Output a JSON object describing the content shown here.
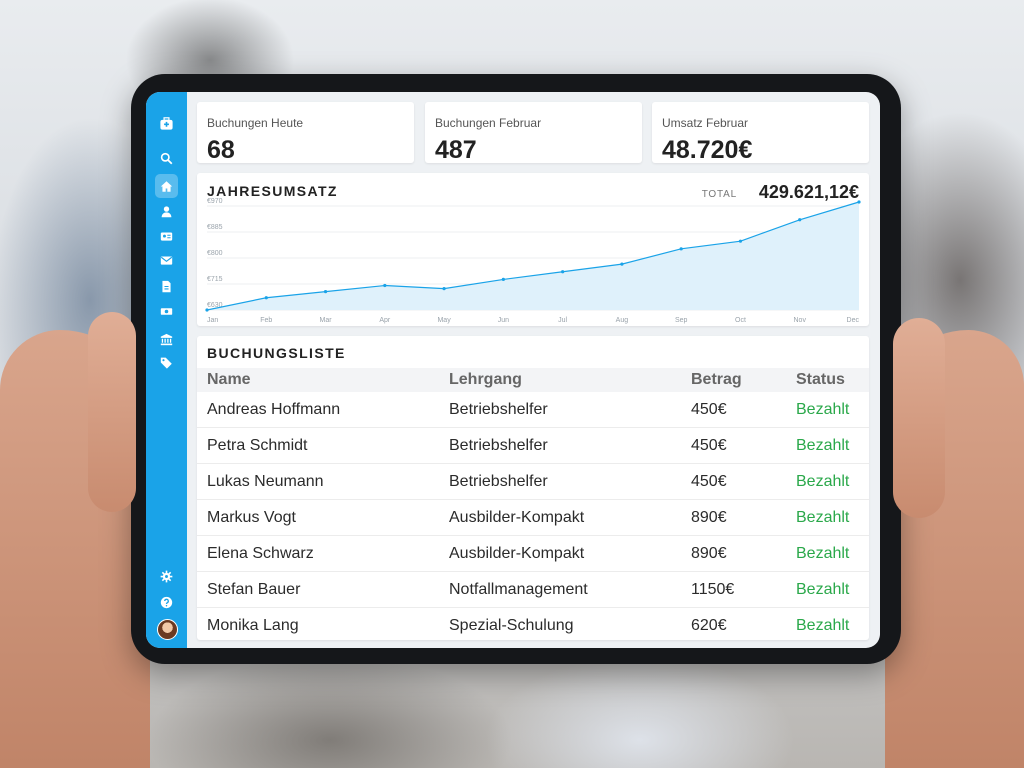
{
  "kpis": [
    {
      "label": "Buchungen Heute",
      "value": "68"
    },
    {
      "label": "Buchungen Februar",
      "value": "487"
    },
    {
      "label": "Umsatz Februar",
      "value": "48.720€"
    }
  ],
  "revenue": {
    "title": "JAHRESUMSATZ",
    "total_label": "TOTAL",
    "total_value": "429.621,12€"
  },
  "bookings": {
    "title": "BUCHUNGSLISTE",
    "columns": [
      "Name",
      "Lehrgang",
      "Betrag",
      "Status"
    ],
    "rows": [
      [
        "Andreas Hoffmann",
        "Betriebshelfer",
        "450€",
        "Bezahlt"
      ],
      [
        "Petra Schmidt",
        "Betriebshelfer",
        "450€",
        "Bezahlt"
      ],
      [
        "Lukas Neumann",
        "Betriebshelfer",
        "450€",
        "Bezahlt"
      ],
      [
        "Markus Vogt",
        "Ausbilder-Kompakt",
        "890€",
        "Bezahlt"
      ],
      [
        "Elena Schwarz",
        "Ausbilder-Kompakt",
        "890€",
        "Bezahlt"
      ],
      [
        "Stefan Bauer",
        "Notfallmanagement",
        "1150€",
        "Bezahlt"
      ],
      [
        "Monika Lang",
        "Spezial-Schulung",
        "620€",
        "Bezahlt"
      ]
    ]
  },
  "sidebar": {
    "icons": [
      "medical-kit-icon",
      "search-icon",
      "home-icon",
      "user-icon",
      "id-card-icon",
      "mail-icon",
      "document-icon",
      "money-icon",
      "bank-icon",
      "tag-icon",
      "gear-icon",
      "help-icon"
    ],
    "active": "home-icon"
  },
  "colors": {
    "sidebar": "#1aa3e8",
    "line": "#1aa3e8",
    "area": "#dff1fb",
    "status": "#2aa84a"
  },
  "chart_data": {
    "type": "area",
    "title": "JAHRESUMSATZ",
    "categories": [
      "Jan",
      "Feb",
      "Mar",
      "Apr",
      "May",
      "Jun",
      "Jul",
      "Aug",
      "Sep",
      "Oct",
      "Nov",
      "Dec"
    ],
    "values": [
      630,
      670,
      690,
      710,
      700,
      730,
      755,
      780,
      830,
      855,
      925,
      1050
    ],
    "y_ticks": [
      "€970",
      "€885",
      "€800",
      "€715",
      "€630"
    ],
    "ylim": [
      630,
      1050
    ],
    "grid": true,
    "legend": false
  }
}
